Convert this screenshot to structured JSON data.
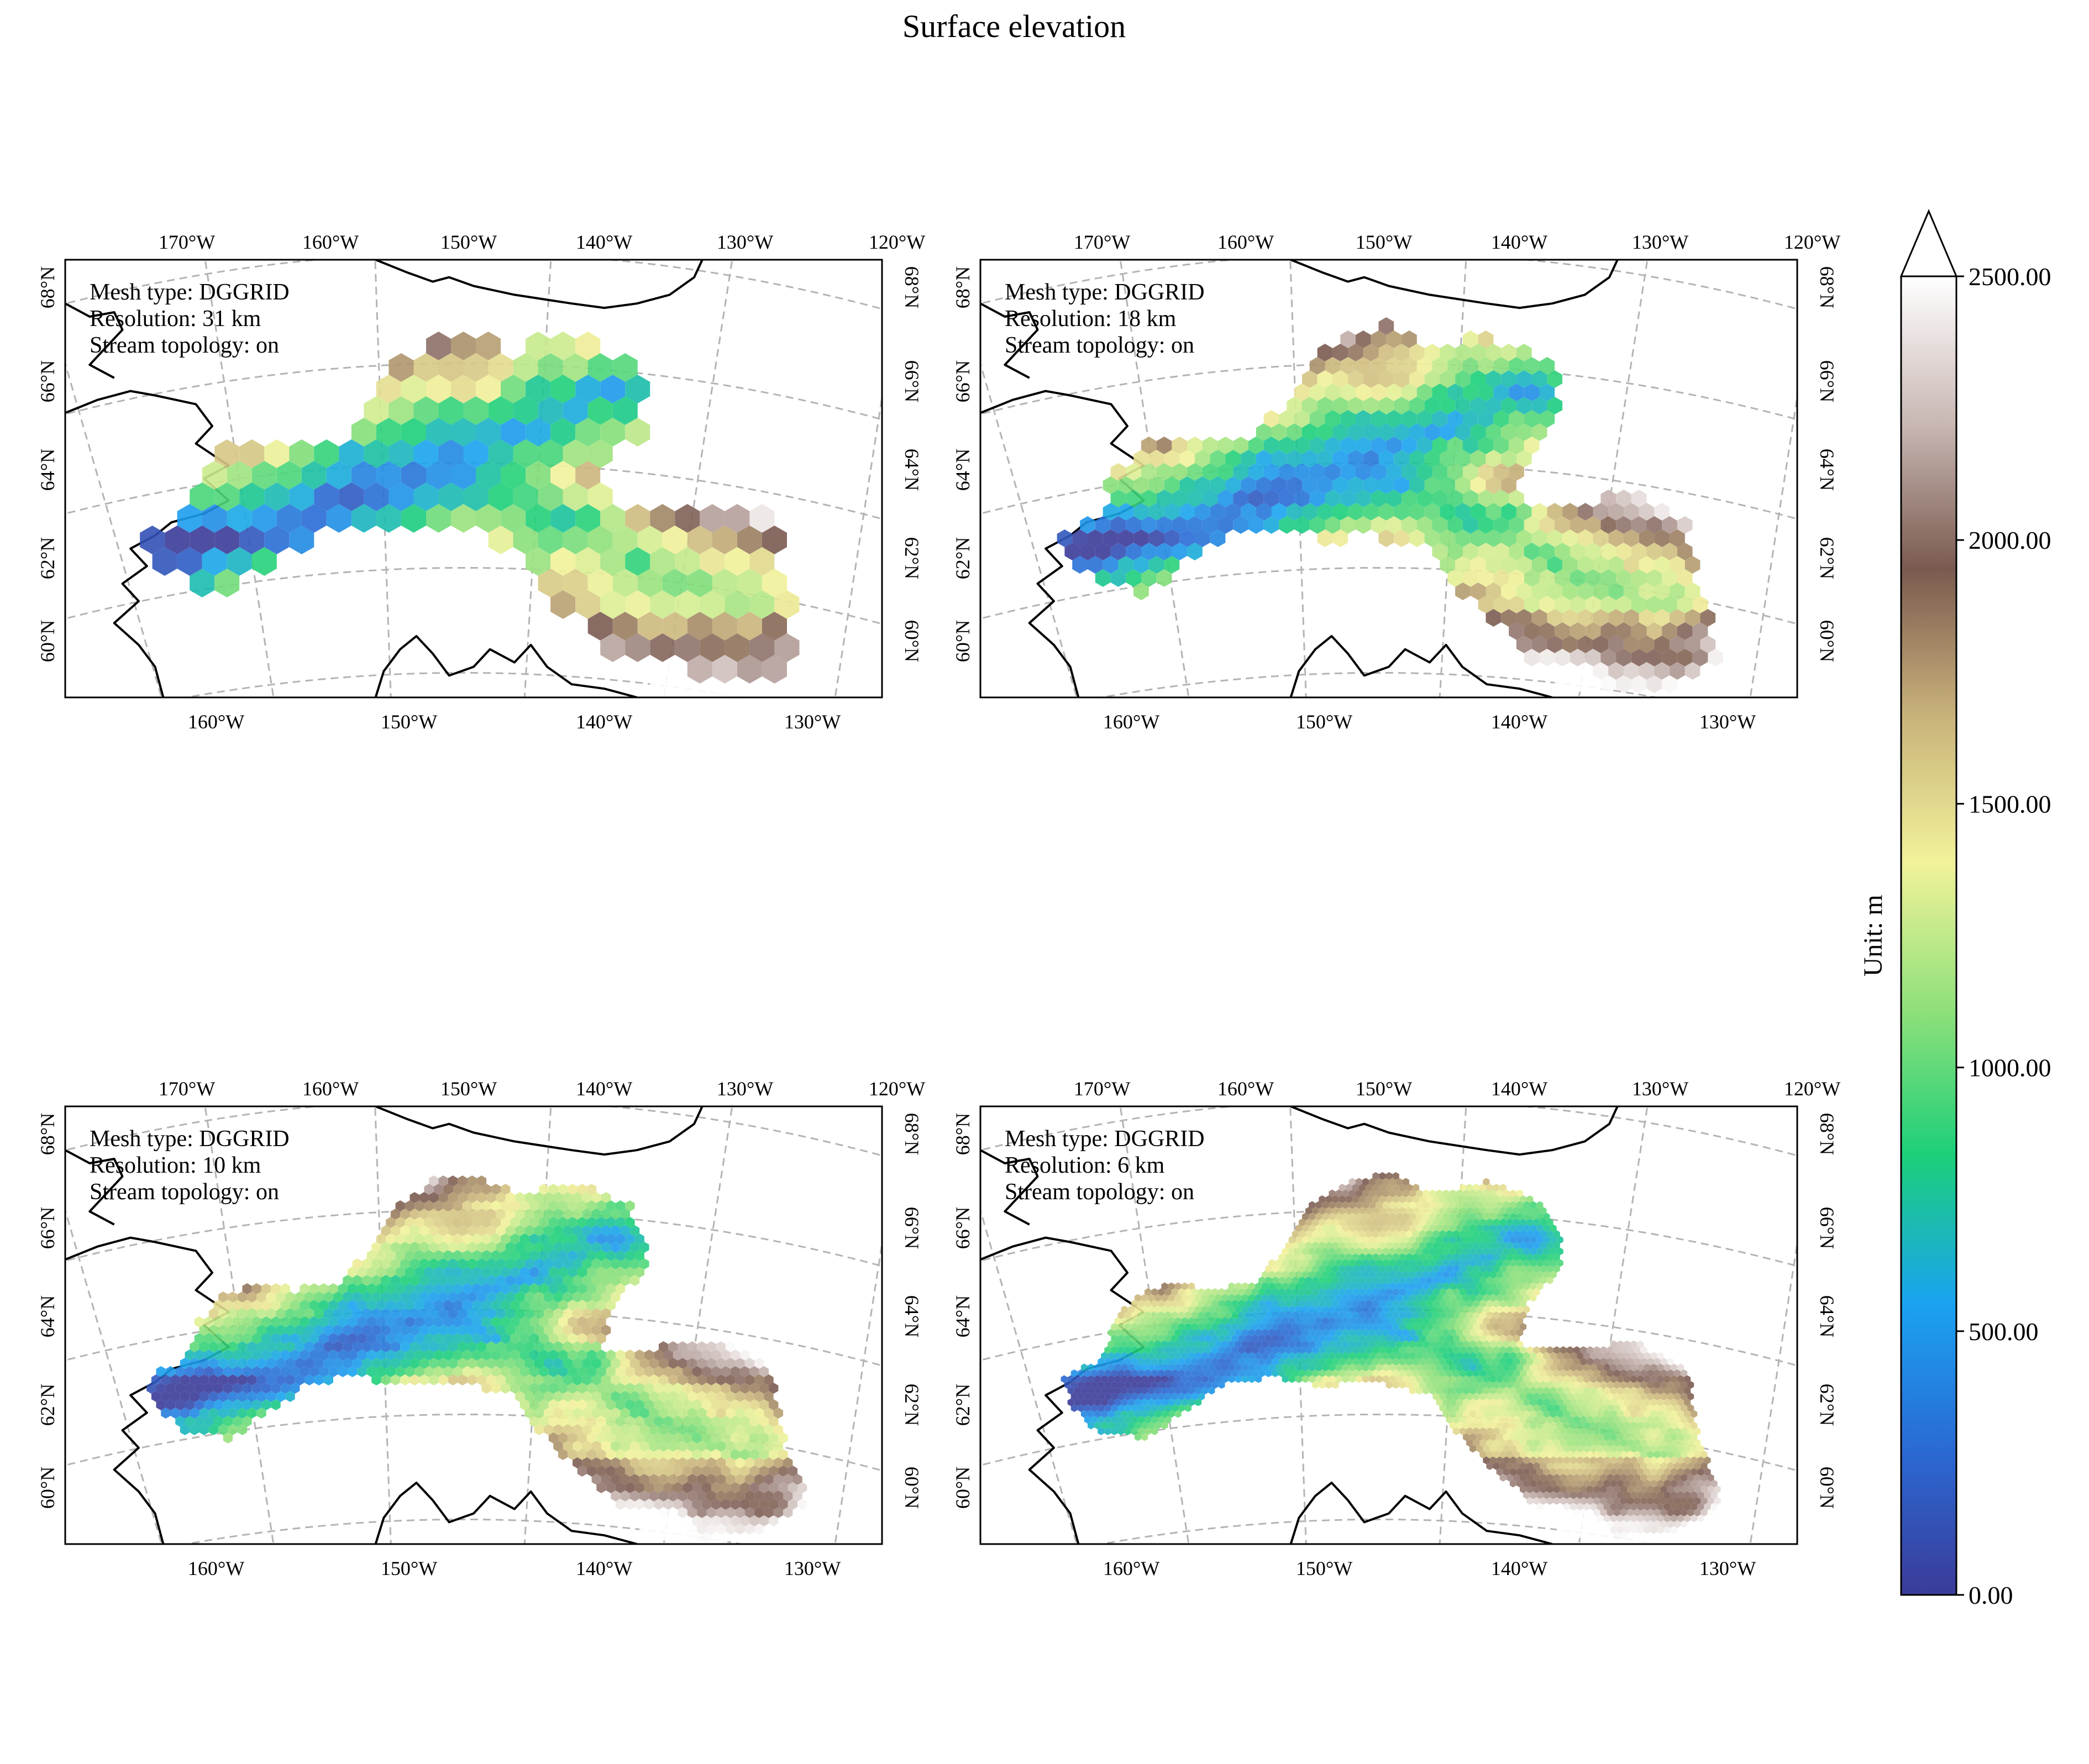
{
  "figure": {
    "title": "Surface elevation"
  },
  "panels": [
    {
      "mesh_type": "Mesh type: DGGRID",
      "resolution": "Resolution: 31 km",
      "stream_topology": "Stream topology: on"
    },
    {
      "mesh_type": "Mesh type: DGGRID",
      "resolution": "Resolution: 18 km",
      "stream_topology": "Stream topology: on"
    },
    {
      "mesh_type": "Mesh type: DGGRID",
      "resolution": "Resolution: 10 km",
      "stream_topology": "Stream topology: on"
    },
    {
      "mesh_type": "Mesh type: DGGRID",
      "resolution": "Resolution: 6 km",
      "stream_topology": "Stream topology: on"
    }
  ],
  "axes": {
    "top_lon_labels": [
      "170°W",
      "160°W",
      "150°W",
      "140°W",
      "130°W",
      "120°W"
    ],
    "bottom_lon_labels": [
      "160°W",
      "150°W",
      "140°W",
      "130°W"
    ],
    "lat_labels": [
      "60°N",
      "62°N",
      "64°N",
      "66°N",
      "68°N"
    ]
  },
  "colorbar": {
    "label": "Unit: m",
    "ticks": [
      "0.00",
      "500.00",
      "1000.00",
      "1500.00",
      "2000.00",
      "2500.00"
    ],
    "min": 0,
    "max": 2500,
    "extend": "max",
    "colors": [
      "#3b3b99",
      "#2a6ad4",
      "#1aa3f0",
      "#1ccf7a",
      "#8fe07a",
      "#f2f29a",
      "#c8b27a",
      "#7a5a50",
      "#c9b8b4",
      "#ffffff"
    ]
  },
  "map_style": {
    "coastline_color": "#000000",
    "graticule_color": "#b4b4b4",
    "graticule_style": "dashed"
  }
}
